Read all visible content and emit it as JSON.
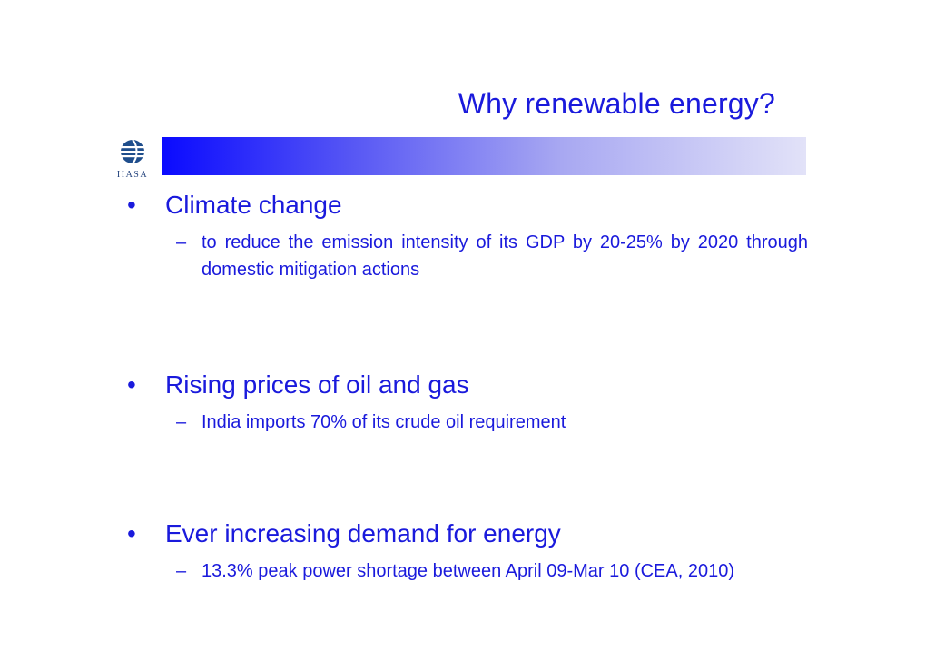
{
  "slide": {
    "title": "Why renewable energy?",
    "logo": {
      "text": "IIASA",
      "icon": "iiasa-globe-icon"
    },
    "colors": {
      "text": "#1a1adc",
      "band_start": "#0a0aff",
      "band_end": "#e2e2f8"
    }
  },
  "bullets": [
    {
      "marker": "•",
      "label": "Climate change",
      "sub_marker": "–",
      "sub": "to reduce the emission intensity of its GDP by 20-25% by 2020 through domestic mitigation actions"
    },
    {
      "marker": "•",
      "label": "Rising prices of oil and gas",
      "sub_marker": "–",
      "sub": "India imports 70% of its crude oil requirement"
    },
    {
      "marker": "•",
      "label": "Ever increasing demand for energy",
      "sub_marker": "–",
      "sub": "13.3% peak power shortage between April 09-Mar 10 (CEA, 2010)"
    }
  ]
}
